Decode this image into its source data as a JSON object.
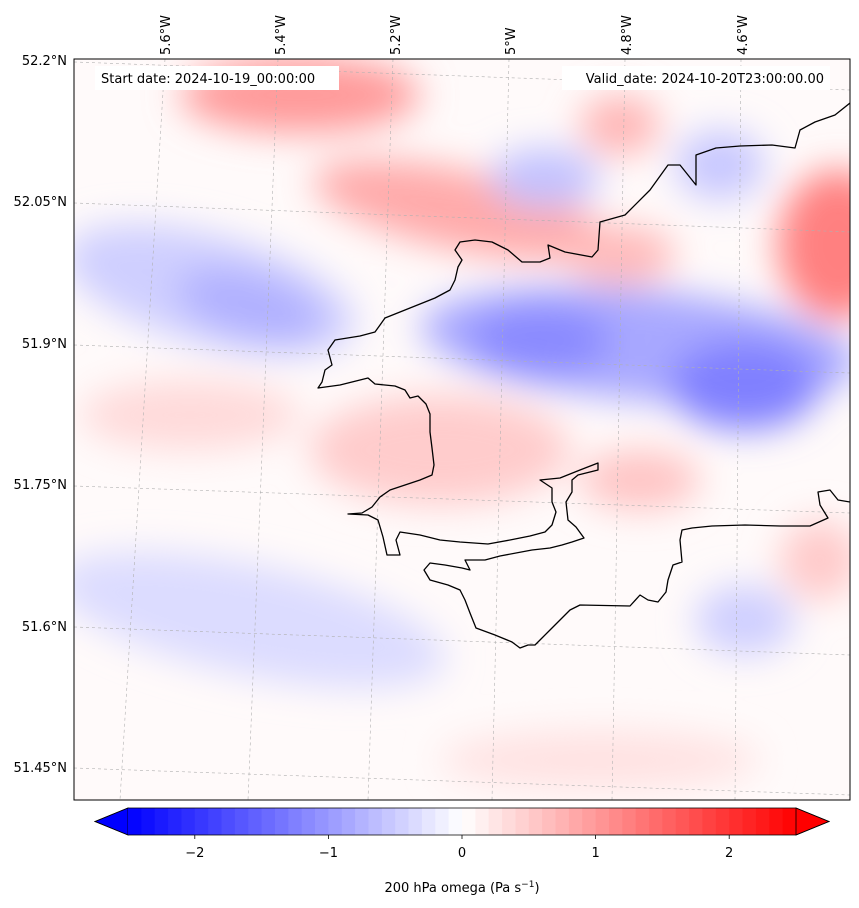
{
  "header": {
    "start_date": "Start date: 2024-10-19_00:00:00",
    "valid_date": "Valid_date: 2024-10-20T23:00:00.00"
  },
  "axes": {
    "lon_labels": [
      "5.6°W",
      "5.4°W",
      "5.2°W",
      "5°W",
      "4.8°W",
      "4.6°W"
    ],
    "lat_labels": [
      "52.2°N",
      "52.05°N",
      "51.9°N",
      "51.75°N",
      "51.6°N",
      "51.45°N"
    ]
  },
  "colorbar": {
    "label_prefix": "200 hPa omega (Pa s",
    "label_exp": "−1",
    "label_suffix": ")",
    "ticks": [
      "−2",
      "−1",
      "0",
      "1",
      "2"
    ],
    "tick_values": [
      -2,
      -1,
      0,
      1,
      2
    ],
    "range": [
      -2.5,
      2.5
    ],
    "extend": "both",
    "cmap": "bwr"
  },
  "colors": {
    "negative": "#0000ff",
    "neutral": "#ffffff",
    "positive": "#ff0000",
    "coastline": "#000000",
    "gridline": "#b0b0b0"
  }
}
